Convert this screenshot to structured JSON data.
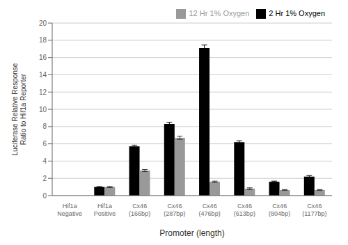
{
  "chart_data": {
    "type": "bar",
    "categories": [
      "Hif1a\nNegative",
      "Hif1a\nPositive",
      "Cx46\n(166bp)",
      "Cx46\n(287bp)",
      "Cx46\n(476bp)",
      "Cx46\n(613bp)",
      "Cx46\n(804bp)",
      "Cx46\n(1177bp)"
    ],
    "series": [
      {
        "name": "2 Hr 1% Oxygen",
        "color": "#000000",
        "values": [
          0.0,
          1.0,
          5.7,
          8.3,
          17.1,
          6.2,
          1.6,
          2.2
        ],
        "errors": [
          0.0,
          0.05,
          0.15,
          0.2,
          0.35,
          0.15,
          0.08,
          0.12
        ]
      },
      {
        "name": "12 Hr 1% Oxygen",
        "color": "#999999",
        "values": [
          0.0,
          1.0,
          2.9,
          6.7,
          1.6,
          0.8,
          0.65,
          0.65
        ],
        "errors": [
          0.0,
          0.07,
          0.12,
          0.18,
          0.08,
          0.1,
          0.05,
          0.05
        ]
      }
    ],
    "xlabel": "Promoter (length)",
    "ylabel": "Luciferase Relative Response\nRatio to Hif1a Reporter",
    "ylim": [
      0,
      20
    ],
    "yticks": [
      0,
      2,
      4,
      6,
      8,
      10,
      12,
      14,
      16,
      18,
      20
    ],
    "grid": true,
    "legend": "upper right"
  }
}
